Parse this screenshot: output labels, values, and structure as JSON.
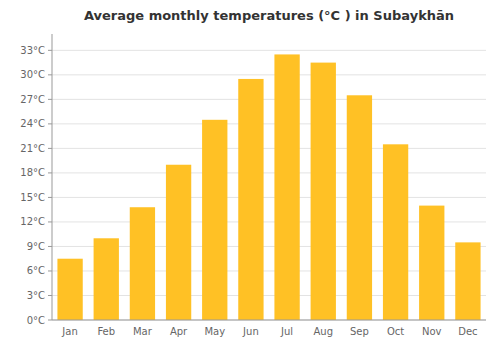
{
  "chart_data": {
    "type": "bar",
    "title": "Average monthly temperatures (°C ) in Subaykhān",
    "categories": [
      "Jan",
      "Feb",
      "Mar",
      "Apr",
      "May",
      "Jun",
      "Jul",
      "Aug",
      "Sep",
      "Oct",
      "Nov",
      "Dec"
    ],
    "values": [
      7.5,
      10.0,
      13.8,
      19.0,
      24.5,
      29.5,
      32.5,
      31.5,
      27.5,
      21.5,
      14.0,
      9.5
    ],
    "color": "#FFC125",
    "ylim": [
      0,
      35
    ],
    "yticks": [
      {
        "value": 0,
        "label": "0°C"
      },
      {
        "value": 3,
        "label": "3°C"
      },
      {
        "value": 6,
        "label": "6°C"
      },
      {
        "value": 9,
        "label": "9°C"
      },
      {
        "value": 12,
        "label": "12°C"
      },
      {
        "value": 15,
        "label": "15°C"
      },
      {
        "value": 18,
        "label": "18°C"
      },
      {
        "value": 21,
        "label": "21°C"
      },
      {
        "value": 24,
        "label": "24°C"
      },
      {
        "value": 27,
        "label": "27°C"
      },
      {
        "value": 30,
        "label": "30°C"
      },
      {
        "value": 33,
        "label": "33°C"
      }
    ],
    "grid": true
  }
}
